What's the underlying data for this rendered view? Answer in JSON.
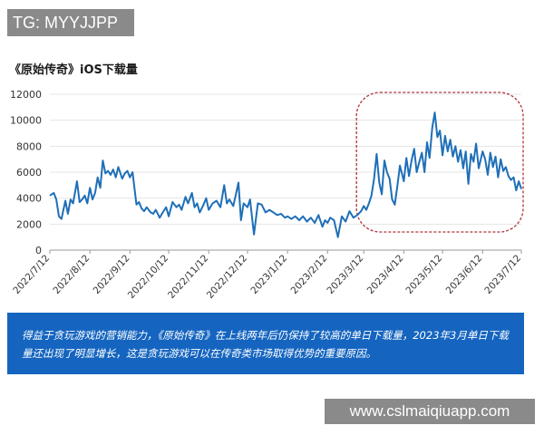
{
  "watermark_top": "TG: MYYJJPP",
  "watermark_bottom": "www.cslmaiqiuapp.com",
  "caption": "得益于贪玩游戏的营销能力，《原始传奇》在上线两年后仍保持了较高的单日下载量，2023年3月单日下载量还出现了明显增长，这是贪玩游戏可以在传奇类市场取得优势的重要原因。",
  "colors": {
    "line": "#1f6fb8",
    "highlight_box": "#b0323a",
    "caption_bg": "#1565c0"
  },
  "chart_data": {
    "type": "line",
    "title": "《原始传奇》iOS下载量",
    "ylim": [
      0,
      12000
    ],
    "yticks": [
      0,
      2000,
      4000,
      6000,
      8000,
      10000,
      12000
    ],
    "xlim": [
      "2022-07-12",
      "2023-07-12"
    ],
    "xticks": [
      "2022/7/12",
      "2022/8/12",
      "2022/9/12",
      "2022/10/12",
      "2022/11/12",
      "2022/12/12",
      "2023/1/12",
      "2023/2/12",
      "2023/3/12",
      "2023/4/12",
      "2023/5/12",
      "2023/6/12",
      "2023/7/12"
    ],
    "highlight_range": [
      "2023-03-12",
      "2023-07-12"
    ],
    "series": [
      {
        "x": [
          "2022-07-12",
          "2022-07-15",
          "2022-07-17",
          "2022-07-19",
          "2022-07-21",
          "2022-07-24",
          "2022-07-26",
          "2022-07-28",
          "2022-07-30",
          "2022-08-02",
          "2022-08-04",
          "2022-08-06",
          "2022-08-08",
          "2022-08-10",
          "2022-08-12",
          "2022-08-14",
          "2022-08-16",
          "2022-08-18",
          "2022-08-20",
          "2022-08-22",
          "2022-08-24",
          "2022-08-26",
          "2022-08-28",
          "2022-08-30",
          "2022-09-01",
          "2022-09-03",
          "2022-09-06",
          "2022-09-08",
          "2022-09-10",
          "2022-09-12",
          "2022-09-14",
          "2022-09-17",
          "2022-09-19",
          "2022-09-21",
          "2022-09-23",
          "2022-09-25",
          "2022-09-28",
          "2022-09-30",
          "2022-10-02",
          "2022-10-05",
          "2022-10-08",
          "2022-10-10",
          "2022-10-12",
          "2022-10-15",
          "2022-10-18",
          "2022-10-20",
          "2022-10-22",
          "2022-10-25",
          "2022-10-27",
          "2022-10-30",
          "2022-11-01",
          "2022-11-03",
          "2022-11-05",
          "2022-11-08",
          "2022-11-10",
          "2022-11-12",
          "2022-11-15",
          "2022-11-18",
          "2022-11-21",
          "2022-11-24",
          "2022-11-26",
          "2022-11-28",
          "2022-12-01",
          "2022-12-03",
          "2022-12-05",
          "2022-12-07",
          "2022-12-09",
          "2022-12-12",
          "2022-12-14",
          "2022-12-17",
          "2022-12-20",
          "2022-12-23",
          "2022-12-26",
          "2022-12-29",
          "2023-01-01",
          "2023-01-04",
          "2023-01-07",
          "2023-01-10",
          "2023-01-12",
          "2023-01-15",
          "2023-01-18",
          "2023-01-21",
          "2023-01-24",
          "2023-01-27",
          "2023-01-30",
          "2023-02-02",
          "2023-02-05",
          "2023-02-08",
          "2023-02-10",
          "2023-02-12",
          "2023-02-14",
          "2023-02-17",
          "2023-02-20",
          "2023-02-23",
          "2023-02-26",
          "2023-03-01",
          "2023-03-04",
          "2023-03-07",
          "2023-03-10",
          "2023-03-12",
          "2023-03-14",
          "2023-03-16",
          "2023-03-18",
          "2023-03-20",
          "2023-03-22",
          "2023-03-24",
          "2023-03-26",
          "2023-03-28",
          "2023-03-30",
          "2023-04-01",
          "2023-04-03",
          "2023-04-05",
          "2023-04-07",
          "2023-04-09",
          "2023-04-12",
          "2023-04-14",
          "2023-04-16",
          "2023-04-18",
          "2023-04-20",
          "2023-04-22",
          "2023-04-24",
          "2023-04-26",
          "2023-04-28",
          "2023-04-30",
          "2023-05-02",
          "2023-05-04",
          "2023-05-06",
          "2023-05-08",
          "2023-05-10",
          "2023-05-12",
          "2023-05-14",
          "2023-05-16",
          "2023-05-18",
          "2023-05-20",
          "2023-05-22",
          "2023-05-24",
          "2023-05-26",
          "2023-05-28",
          "2023-05-30",
          "2023-06-01",
          "2023-06-03",
          "2023-06-05",
          "2023-06-07",
          "2023-06-09",
          "2023-06-12",
          "2023-06-14",
          "2023-06-16",
          "2023-06-18",
          "2023-06-20",
          "2023-06-22",
          "2023-06-24",
          "2023-06-26",
          "2023-06-28",
          "2023-06-30",
          "2023-07-02",
          "2023-07-04",
          "2023-07-06",
          "2023-07-08",
          "2023-07-10",
          "2023-07-12"
        ],
        "values": [
          4200,
          4400,
          3900,
          2600,
          2400,
          3800,
          2800,
          3900,
          3600,
          5300,
          3700,
          3900,
          4200,
          3600,
          4800,
          3900,
          4400,
          5600,
          4800,
          6900,
          5900,
          6100,
          5800,
          6200,
          5600,
          6400,
          5500,
          5900,
          6100,
          5600,
          6000,
          3500,
          3700,
          3200,
          3000,
          3300,
          2900,
          2800,
          3100,
          2500,
          3000,
          3300,
          2600,
          3700,
          3300,
          3500,
          3100,
          4100,
          3600,
          4400,
          3300,
          3600,
          2900,
          3500,
          4000,
          3100,
          3600,
          3800,
          3300,
          5000,
          3600,
          3900,
          3400,
          4300,
          5200,
          2300,
          3600,
          3300,
          3900,
          1200,
          3600,
          3500,
          2900,
          3100,
          2900,
          2700,
          2800,
          2500,
          2600,
          2400,
          2600,
          2300,
          2600,
          2200,
          2500,
          2100,
          2700,
          1800,
          2300,
          2100,
          2500,
          2300,
          1000,
          2600,
          2200,
          3000,
          2500,
          2700,
          3000,
          3400,
          3100,
          3600,
          4200,
          5500,
          7400,
          5200,
          4300,
          6900,
          6000,
          5500,
          3900,
          3500,
          4900,
          6500,
          5300,
          7100,
          5700,
          6900,
          7800,
          6000,
          6800,
          7500,
          6000,
          8300,
          7100,
          9400,
          10600,
          8700,
          9200,
          7300,
          8800,
          7600,
          8500,
          7200,
          8000,
          6800,
          7700,
          6300,
          7600,
          5100,
          7400,
          6800,
          8200,
          6300,
          7600,
          7000,
          5800,
          7500,
          6400,
          7200,
          5600,
          7000,
          6100,
          6400,
          5700,
          5400,
          5600,
          4600,
          5300,
          4700
        ]
      }
    ]
  }
}
